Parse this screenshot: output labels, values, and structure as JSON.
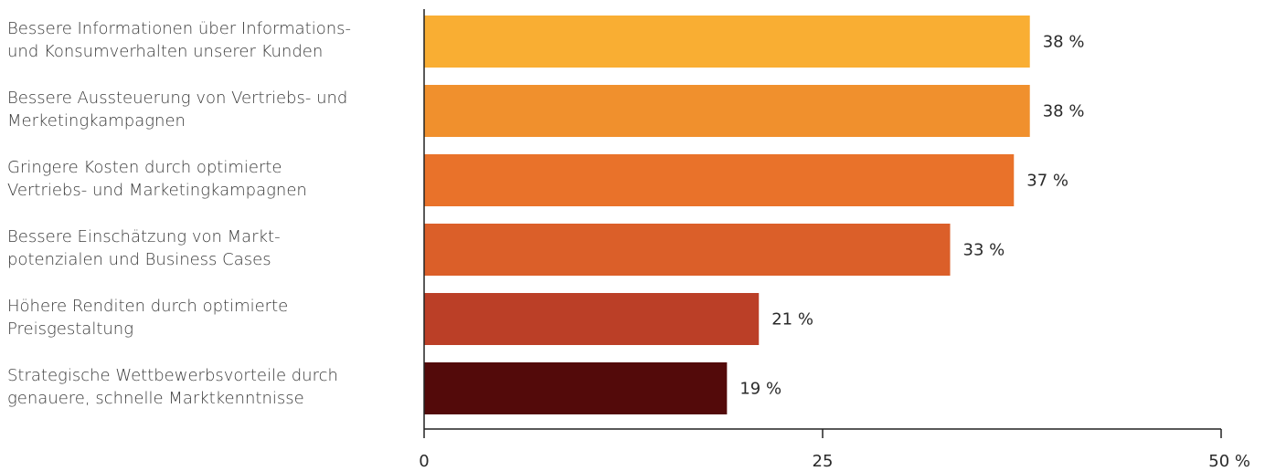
{
  "chart_data": {
    "type": "bar",
    "orientation": "horizontal",
    "categories": [
      "Bessere Informationen über Informations-\nund Konsumverhalten unserer Kunden",
      "Bessere Aussteuerung von Vertriebs- und\nMerketingkampagnen",
      "Gringere Kosten durch optimierte\nVertriebs- und Marketingkampagnen",
      "Bessere Einschätzung von Markt-\npotenzialen und Business Cases",
      "Höhere Renditen durch optimierte\nPreisgestaltung",
      "Strategische Wettbewerbsvorteile durch\ngenauere, schnelle Marktkenntnisse"
    ],
    "values": [
      38,
      38,
      37,
      33,
      21,
      19
    ],
    "value_labels": [
      "38 %",
      "38 %",
      "37 %",
      "33 %",
      "21 %",
      "19 %"
    ],
    "colors": [
      "#F9AE33",
      "#F0902D",
      "#E9722A",
      "#DB5F29",
      "#BB3F27",
      "#530A0A"
    ],
    "xlim": [
      0,
      50
    ],
    "xticks": [
      0,
      25,
      50
    ],
    "xtick_labels": [
      "0",
      "25",
      "50 %"
    ],
    "title": "",
    "xlabel": "",
    "ylabel": "",
    "grid": false,
    "legend": "none"
  }
}
